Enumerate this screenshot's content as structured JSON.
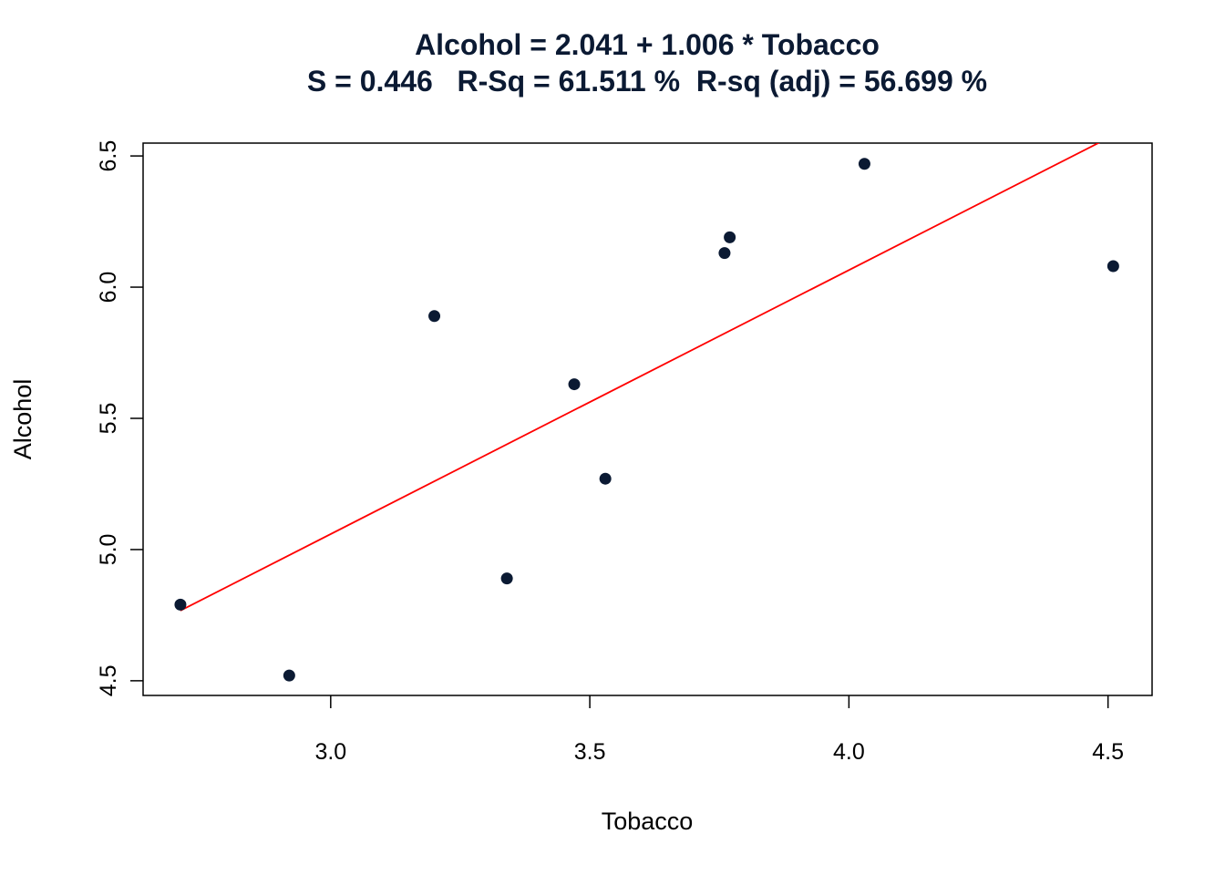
{
  "chart_data": {
    "type": "scatter",
    "title": "Alcohol = 2.041 + 1.006 * Tobacco",
    "subtitle": "S = 0.446   R-Sq = 61.511 %  R-sq (adj) = 56.699 %",
    "xlabel": "Tobacco",
    "ylabel": "Alcohol",
    "xlim": [
      2.638,
      4.585
    ],
    "ylim": [
      4.444,
      6.549
    ],
    "xticks": [
      "3.0",
      "3.5",
      "4.0",
      "4.5"
    ],
    "yticks": [
      "4.5",
      "5.0",
      "5.5",
      "6.0",
      "6.5"
    ],
    "grid": false,
    "points": [
      {
        "x": 2.71,
        "y": 4.79
      },
      {
        "x": 2.92,
        "y": 4.52
      },
      {
        "x": 3.2,
        "y": 5.89
      },
      {
        "x": 3.34,
        "y": 4.89
      },
      {
        "x": 3.47,
        "y": 5.63
      },
      {
        "x": 3.53,
        "y": 5.27
      },
      {
        "x": 3.76,
        "y": 6.13
      },
      {
        "x": 3.77,
        "y": 6.19
      },
      {
        "x": 4.03,
        "y": 6.47
      },
      {
        "x": 4.51,
        "y": 6.08
      }
    ],
    "fit_line": {
      "intercept": 2.041,
      "slope": 1.006,
      "x_range": [
        2.71,
        4.51
      ]
    },
    "colors": {
      "points": "#0b1a33",
      "fit_line": "#ff0000",
      "title": "#0b1a33"
    }
  }
}
